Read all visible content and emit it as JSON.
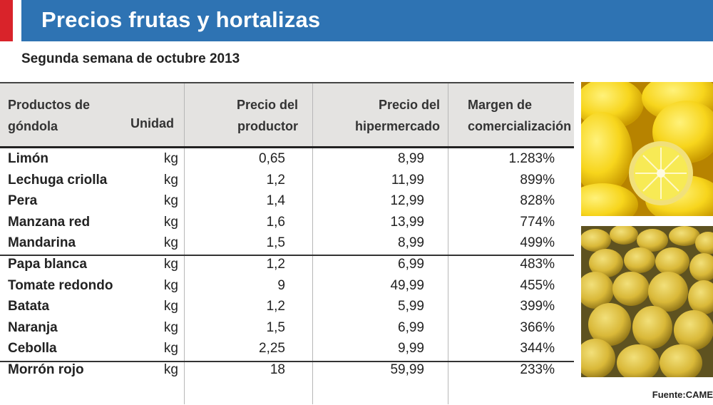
{
  "title": "Precios frutas y hortalizas",
  "subtitle": "Segunda semana de octubre 2013",
  "columns": {
    "product": [
      "Productos de",
      "góndola"
    ],
    "unit": "Unidad",
    "producer_price": [
      "Precio del",
      "productor"
    ],
    "hyper_price": [
      "Precio del",
      "hipermercado"
    ],
    "margin": [
      "Margen de",
      "comercialización"
    ]
  },
  "rows": [
    {
      "name": "Limón",
      "unit": "kg",
      "producer": "0,65",
      "hyper": "8,99",
      "margin": "1.283%"
    },
    {
      "name": "Lechuga criolla",
      "unit": "kg",
      "producer": "1,2",
      "hyper": "11,99",
      "margin": "899%"
    },
    {
      "name": "Pera",
      "unit": "kg",
      "producer": "1,4",
      "hyper": "12,99",
      "margin": "828%"
    },
    {
      "name": "Manzana red",
      "unit": "kg",
      "producer": "1,6",
      "hyper": "13,99",
      "margin": "774%"
    },
    {
      "name": "Mandarina",
      "unit": "kg",
      "producer": "1,5",
      "hyper": "8,99",
      "margin": "499%"
    },
    {
      "name": "Papa blanca",
      "unit": "kg",
      "producer": "1,2",
      "hyper": "6,99",
      "margin": "483%"
    },
    {
      "name": "Tomate redondo",
      "unit": "kg",
      "producer": "9",
      "hyper": "49,99",
      "margin": "455%"
    },
    {
      "name": "Batata",
      "unit": "kg",
      "producer": "1,2",
      "hyper": "5,99",
      "margin": "399%"
    },
    {
      "name": "Naranja",
      "unit": "kg",
      "producer": "1,5",
      "hyper": "6,99",
      "margin": "366%"
    },
    {
      "name": "Cebolla",
      "unit": "kg",
      "producer": "2,25",
      "hyper": "9,99",
      "margin": "344%"
    },
    {
      "name": "Morrón rojo",
      "unit": "kg",
      "producer": "18",
      "hyper": "59,99",
      "margin": "233%"
    }
  ],
  "source": "Fuente:CAME",
  "colors": {
    "title_bar": "#2e73b3",
    "accent_red": "#d9232a",
    "header_bg": "#e4e3e1"
  },
  "images": [
    "lemons-photo",
    "pears-photo"
  ]
}
